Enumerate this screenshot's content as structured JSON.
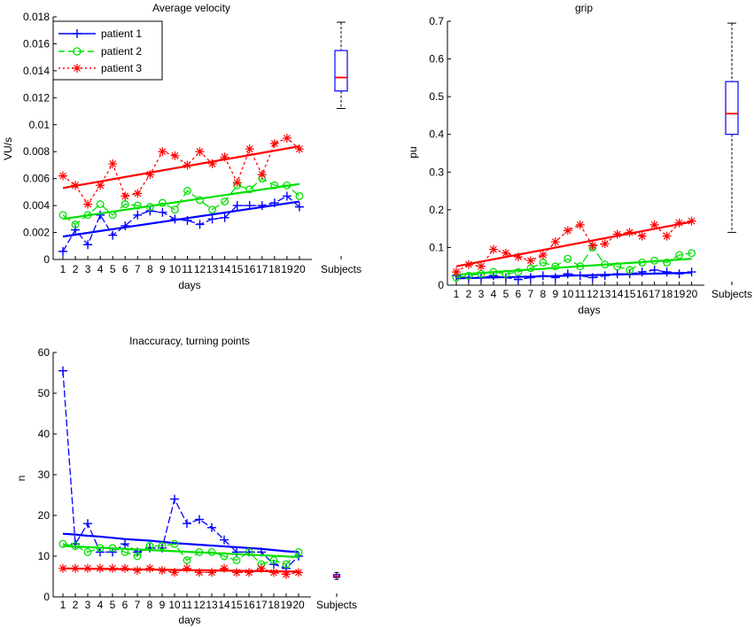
{
  "chart_data": [
    {
      "type": "line",
      "title": "Average velocity",
      "xlabel": "days",
      "ylabel": "VU/s",
      "ylim": [
        0,
        0.018
      ],
      "yticks": [
        0,
        0.002,
        0.004,
        0.006,
        0.008,
        0.01,
        0.012,
        0.014,
        0.016,
        0.018
      ],
      "ytick_labels": [
        "0",
        "0.002",
        "0.004",
        "0.006",
        "0.008",
        "0.01",
        "0.012",
        "0.014",
        "0.016",
        "0.018"
      ],
      "categories": [
        "1",
        "2",
        "3",
        "4",
        "5",
        "6",
        "7",
        "8",
        "9",
        "10",
        "11",
        "12",
        "13",
        "14",
        "15",
        "16",
        "17",
        "18",
        "19",
        "20"
      ],
      "extra_category": "Subjects",
      "legend": {
        "position": "top-left",
        "entries": [
          "patient 1",
          "patient 2",
          "patient 3"
        ]
      },
      "series": [
        {
          "name": "patient 1",
          "color": "#0000ff",
          "marker": "plus",
          "values": [
            0.0006,
            0.0022,
            0.0011,
            0.0033,
            0.0018,
            0.0025,
            0.0033,
            0.0036,
            0.0035,
            0.003,
            0.0029,
            0.0026,
            0.003,
            0.0031,
            0.004,
            0.004,
            0.004,
            0.0042,
            0.0047,
            0.0039
          ],
          "trend": [
            0.0017,
            0.0043
          ]
        },
        {
          "name": "patient 2",
          "color": "#00e000",
          "marker": "circle",
          "values": [
            0.0033,
            0.0026,
            0.0033,
            0.0041,
            0.0033,
            0.0041,
            0.004,
            0.0039,
            0.0042,
            0.0037,
            0.0051,
            0.0044,
            0.0037,
            0.0043,
            0.0055,
            0.0052,
            0.006,
            0.0055,
            0.0055,
            0.0047
          ],
          "trend": [
            0.003,
            0.0056
          ]
        },
        {
          "name": "patient 3",
          "color": "#ff0000",
          "marker": "star",
          "values": [
            0.0062,
            0.0055,
            0.0041,
            0.0055,
            0.0071,
            0.0047,
            0.0049,
            0.0063,
            0.008,
            0.0077,
            0.007,
            0.008,
            0.0071,
            0.0076,
            0.0057,
            0.0082,
            0.0063,
            0.0086,
            0.009,
            0.0082
          ],
          "trend": [
            0.0053,
            0.0084
          ]
        }
      ],
      "boxplot": {
        "min": 0.0112,
        "q1": 0.0125,
        "median": 0.0135,
        "q3": 0.0155,
        "max": 0.0176
      }
    },
    {
      "type": "line",
      "title": "grip",
      "xlabel": "days",
      "ylabel": "pu",
      "ylim": [
        0,
        0.7
      ],
      "yticks": [
        0,
        0.1,
        0.2,
        0.3,
        0.4,
        0.5,
        0.6,
        0.7
      ],
      "ytick_labels": [
        "0",
        "0.1",
        "0.2",
        "0.3",
        "0.4",
        "0.5",
        "0.6",
        "0.7"
      ],
      "categories": [
        "1",
        "2",
        "3",
        "4",
        "5",
        "6",
        "7",
        "8",
        "9",
        "10",
        "11",
        "12",
        "13",
        "14",
        "15",
        "16",
        "17",
        "18",
        "19",
        "20"
      ],
      "extra_category": "Subjects",
      "series": [
        {
          "name": "patient 1",
          "color": "#0000ff",
          "marker": "plus",
          "values": [
            0.025,
            0.02,
            0.02,
            0.025,
            0.02,
            0.015,
            0.02,
            0.025,
            0.02,
            0.03,
            0.025,
            0.02,
            0.025,
            0.03,
            0.03,
            0.035,
            0.04,
            0.035,
            0.03,
            0.035
          ],
          "trend": [
            0.018,
            0.033
          ]
        },
        {
          "name": "patient 2",
          "color": "#00e000",
          "marker": "circle",
          "values": [
            0.02,
            0.025,
            0.03,
            0.035,
            0.03,
            0.035,
            0.045,
            0.06,
            0.05,
            0.07,
            0.05,
            0.1,
            0.055,
            0.05,
            0.04,
            0.06,
            0.065,
            0.06,
            0.08,
            0.085
          ],
          "trend": [
            0.028,
            0.07
          ]
        },
        {
          "name": "patient 3",
          "color": "#ff0000",
          "marker": "star",
          "values": [
            0.035,
            0.055,
            0.05,
            0.095,
            0.085,
            0.075,
            0.065,
            0.08,
            0.115,
            0.145,
            0.16,
            0.105,
            0.11,
            0.135,
            0.14,
            0.13,
            0.16,
            0.13,
            0.165,
            0.17
          ],
          "trend": [
            0.05,
            0.168
          ]
        }
      ],
      "boxplot": {
        "min": 0.14,
        "q1": 0.4,
        "median": 0.455,
        "q3": 0.54,
        "max": 0.695
      }
    },
    {
      "type": "line",
      "title": "Inaccuracy, turning points",
      "xlabel": "days",
      "ylabel": "n",
      "ylim": [
        0,
        60
      ],
      "yticks": [
        0,
        10,
        20,
        30,
        40,
        50,
        60
      ],
      "ytick_labels": [
        "0",
        "10",
        "20",
        "30",
        "40",
        "50",
        "60"
      ],
      "categories": [
        "1",
        "2",
        "3",
        "4",
        "5",
        "6",
        "7",
        "8",
        "9",
        "10",
        "11",
        "12",
        "13",
        "14",
        "15",
        "16",
        "17",
        "18",
        "19",
        "20"
      ],
      "extra_category": "Subjects",
      "series": [
        {
          "name": "patient 1",
          "color": "#0000ff",
          "marker": "plus",
          "values": [
            55.5,
            13,
            18,
            11,
            11,
            13,
            11,
            12,
            12,
            24,
            18,
            19,
            17,
            14,
            11,
            11,
            11,
            8,
            7,
            10
          ],
          "trend": [
            15.5,
            15.3,
            15,
            14.8,
            14.5,
            14.2,
            14,
            13.8,
            13.5,
            13.2,
            13,
            12.8,
            12.6,
            12.4,
            12.2,
            12,
            11.8,
            11.5,
            11.2,
            11
          ]
        },
        {
          "name": "patient 2",
          "color": "#00e000",
          "marker": "circle",
          "values": [
            13,
            12.5,
            11,
            12,
            12,
            11,
            10,
            12.5,
            12.5,
            13,
            9,
            11,
            11,
            10,
            9,
            11,
            8,
            9,
            8,
            11
          ],
          "trend": [
            12.5,
            9.8
          ]
        },
        {
          "name": "patient 3",
          "color": "#ff0000",
          "marker": "star",
          "values": [
            7,
            7,
            7,
            7,
            7,
            7,
            6.5,
            7,
            6.5,
            6,
            7,
            6,
            6,
            7,
            6,
            6,
            7,
            6,
            5.5,
            6
          ],
          "trend": [
            7,
            6.2
          ]
        }
      ],
      "boxplot": {
        "min": 4.3,
        "q1": 4.8,
        "median": 5.1,
        "q3": 5.5,
        "max": 6
      }
    }
  ]
}
